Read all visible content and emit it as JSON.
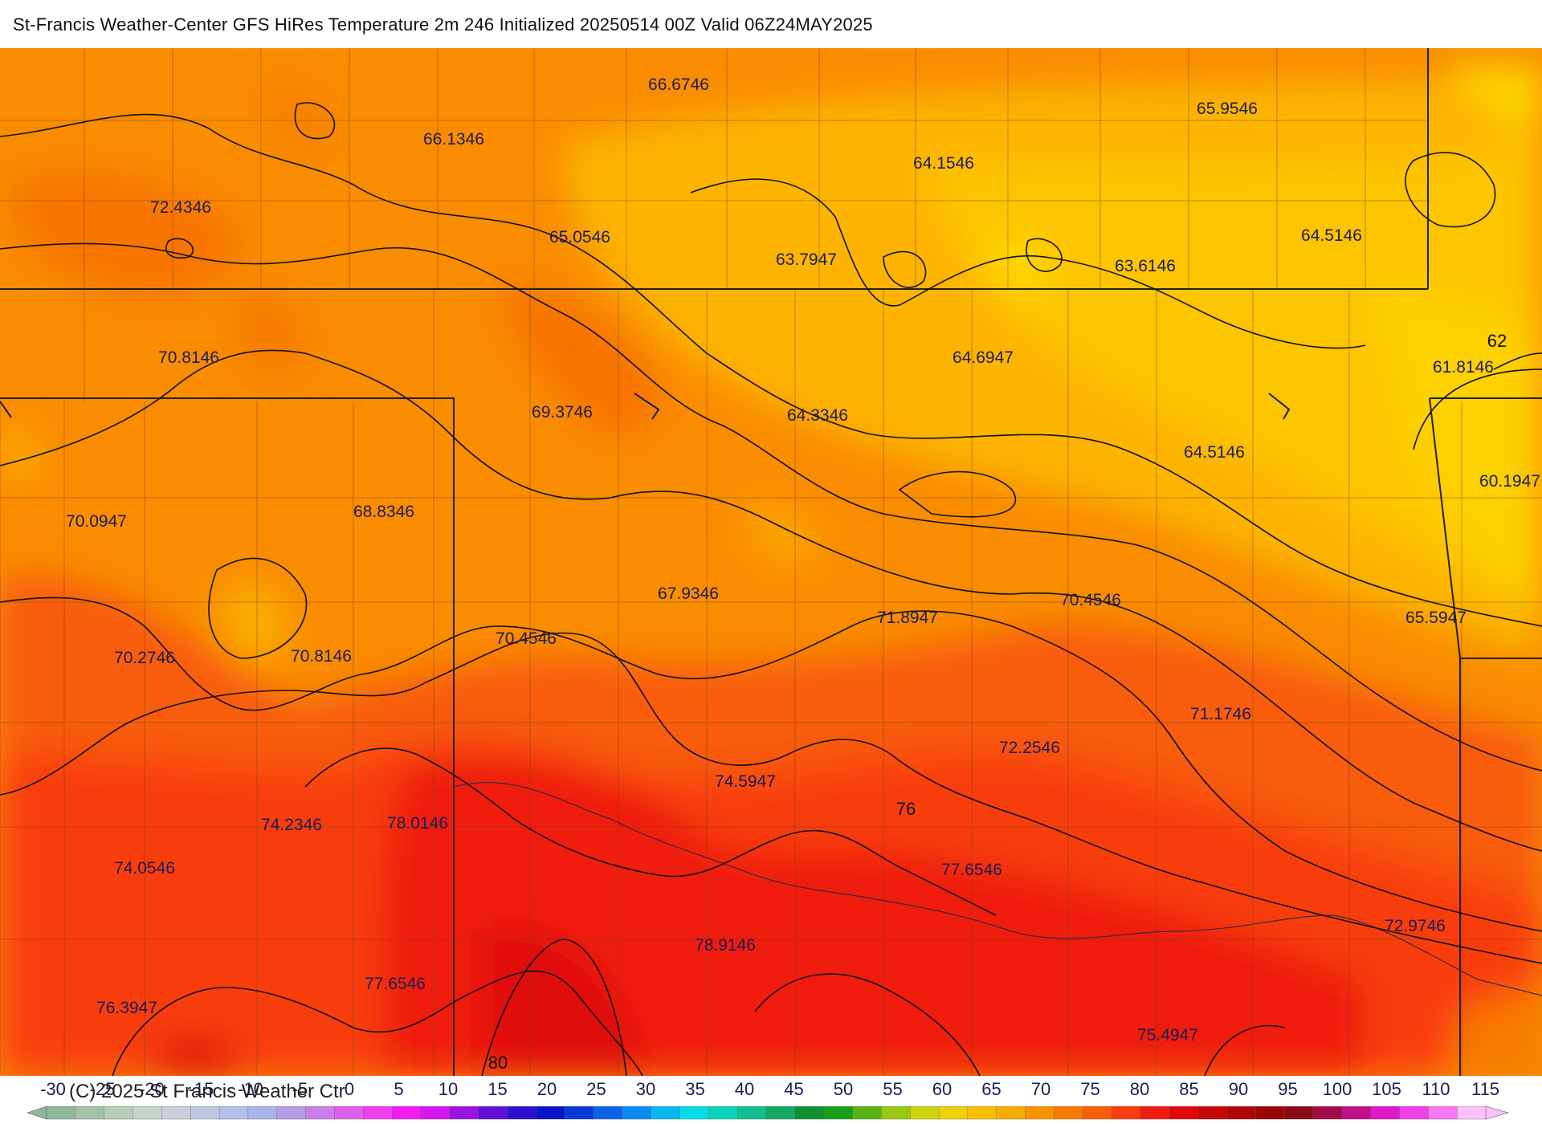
{
  "title": "St-Francis Weather-Center GFS HiRes Temperature 2m  246 Initialized 20250514 00Z Valid 06Z24MAY2025",
  "copyright": "(C) 2025 St Francis Weather Ctr",
  "map_values": [
    "66.6746",
    "65.9546",
    "66.1346",
    "64.1546",
    "72.4346",
    "65.0546",
    "63.7947",
    "63.6146",
    "64.5146",
    "70.8146",
    "64.6947",
    "61.8146",
    "69.3746",
    "64.3346",
    "64.5146",
    "60.1947",
    "70.0947",
    "68.8346",
    "67.9346",
    "71.8947",
    "70.4546",
    "65.5947",
    "70.2746",
    "70.8146",
    "70.4546",
    "71.1746",
    "72.2546",
    "74.5947",
    "74.2346",
    "78.0146",
    "74.0546",
    "77.6546",
    "72.9746",
    "78.9146",
    "77.6546",
    "76.3947",
    "75.4947"
  ],
  "contour_labels": [
    "62",
    "76",
    "80"
  ],
  "colorbar": {
    "ticks": [
      "-30",
      "-25",
      "-20",
      "-15",
      "-10",
      "-5",
      "0",
      "5",
      "10",
      "15",
      "20",
      "25",
      "30",
      "35",
      "40",
      "45",
      "50",
      "55",
      "60",
      "65",
      "70",
      "75",
      "80",
      "85",
      "90",
      "95",
      "100",
      "105",
      "110",
      "115"
    ],
    "colors": [
      "#8fb79a",
      "#a3c2aa",
      "#b7cdb9",
      "#c5d3c8",
      "#c9d0dc",
      "#bfc7e3",
      "#b3bfe6",
      "#a8b5e8",
      "#b69be6",
      "#c97ee8",
      "#dd5fec",
      "#ef3ef0",
      "#f21bf0",
      "#d417ee",
      "#9a12e0",
      "#6010d8",
      "#3010d0",
      "#0a14c8",
      "#0838d8",
      "#0a62e6",
      "#0a8cf0",
      "#06b8f2",
      "#06dce8",
      "#0ad6bc",
      "#10c090",
      "#14a864",
      "#109030",
      "#18a018",
      "#58b414",
      "#98c810",
      "#d0d40a",
      "#f0d006",
      "#f8c000",
      "#f8ac00",
      "#f89400",
      "#f87a00",
      "#f85e08",
      "#f83c10",
      "#f01c10",
      "#e00808",
      "#c80606",
      "#b00606",
      "#980606",
      "#880a14",
      "#a00c48",
      "#c0108a",
      "#e018c8",
      "#f040e8",
      "#f878f4",
      "#fcc0fc"
    ]
  }
}
